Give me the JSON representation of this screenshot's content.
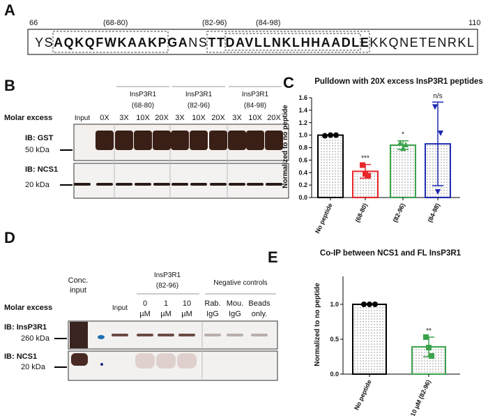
{
  "panel_a": {
    "label": "A",
    "start": 66,
    "end": 110,
    "peptides": [
      "(68-80)",
      "(82-96)",
      "(84-98)"
    ],
    "sequence": [
      {
        "text": "YS",
        "bold": false
      },
      {
        "text": "AQKQFWKAAKPGA",
        "bold": true
      },
      {
        "text": "NS",
        "bold": false
      },
      {
        "text": "TT",
        "bold": true
      },
      {
        "text": "DAVLLNKLHHAAD",
        "bold": true
      },
      {
        "text": "LE",
        "bold": true
      },
      {
        "text": "KKQNETENRKL",
        "bold": false
      }
    ]
  },
  "panel_b": {
    "label": "B",
    "molar_excess": "Molar excess",
    "input": "Input",
    "control": "0X",
    "groups": [
      {
        "name": "InsP3R1",
        "range": "(68-80)",
        "doses": [
          "3X",
          "10X",
          "20X"
        ]
      },
      {
        "name": "InsP3R1",
        "range": "(82-96)",
        "doses": [
          "3X",
          "10X",
          "20X"
        ]
      },
      {
        "name": "InsP3R1",
        "range": "(84-98)",
        "doses": [
          "3X",
          "10X",
          "20X"
        ]
      }
    ],
    "blots": [
      {
        "label": "IB: GST",
        "marker": "50 kDa"
      },
      {
        "label": "IB:  NCS1",
        "marker": "20 kDa"
      }
    ]
  },
  "panel_d": {
    "label": "D",
    "molar_excess": "Molar excess",
    "conc_input": [
      "Conc.",
      "input"
    ],
    "input": "Input",
    "group": {
      "name": "InsP3R1",
      "range": "(82-96)",
      "doses": [
        [
          "0",
          "µM"
        ],
        [
          "1",
          "µM"
        ],
        [
          "10",
          "µM"
        ]
      ]
    },
    "controls": {
      "name": "Negative controls",
      "lanes": [
        [
          "Rab.",
          "IgG"
        ],
        [
          "Mou.",
          "IgG"
        ],
        [
          "Beads",
          "only."
        ]
      ]
    },
    "blots": [
      {
        "label": "IB: InsP3R1",
        "marker": "260 kDa"
      },
      {
        "label": "IB: NCS1",
        "marker": "20 kDa"
      }
    ]
  },
  "chart_data": [
    {
      "type": "bar",
      "panel_label": "C",
      "title": "Pulldown with 20X excess InsP3R1 peptides",
      "y_label": "Normalized to no peptide",
      "categories": [
        "No peptide",
        "(68-80)",
        "(82-96)",
        "(84-98)"
      ],
      "values": [
        1.0,
        0.42,
        0.84,
        0.86
      ],
      "errors": [
        0,
        0.11,
        0.07,
        0.67
      ],
      "points": [
        [
          0.99,
          1.0,
          1.0
        ],
        [
          0.52,
          0.38,
          0.35
        ],
        [
          0.88,
          0.79,
          0.85
        ],
        [
          1.45,
          0.09,
          1.03
        ]
      ],
      "markers": [
        "circle",
        "square",
        "triangle-up",
        "triangle-down"
      ],
      "colors": [
        "#000000",
        "#e8262b",
        "#3aa24a",
        "#1f2bb0"
      ],
      "annotations": [
        null,
        "***",
        "*",
        "n/s"
      ],
      "ylim": [
        0,
        1.6
      ],
      "yticks": [
        {
          "value": 0,
          "label": "0.0"
        },
        {
          "value": 0.2,
          "label": "0.2"
        },
        {
          "value": 0.4,
          "label": "0.4"
        },
        {
          "value": 0.6,
          "label": "0.6"
        },
        {
          "value": 0.8,
          "label": "0.8"
        },
        {
          "value": 1,
          "label": "1.0"
        },
        {
          "value": 1.2,
          "label": "1.2"
        },
        {
          "value": 1.4,
          "label": "1.4"
        },
        {
          "value": 1.6,
          "label": "1.6"
        }
      ]
    },
    {
      "type": "bar",
      "panel_label": "E",
      "title": "Co-IP between NCS1 and FL InsP3R1",
      "y_label": "Normalized to no peptide",
      "categories": [
        "No peptide",
        "10 µM (82-96)"
      ],
      "values": [
        1.0,
        0.39
      ],
      "errors": [
        0,
        0.14
      ],
      "points": [
        [
          1.0,
          1.0,
          1.0
        ],
        [
          0.53,
          0.38,
          0.26
        ]
      ],
      "markers": [
        "circle",
        "square"
      ],
      "colors": [
        "#000000",
        "#3aa24a"
      ],
      "annotations": [
        null,
        "**"
      ],
      "ylim": [
        0,
        1.4
      ],
      "yticks": [
        {
          "value": 0,
          "label": "0.0"
        },
        {
          "value": 0.5,
          "label": "0.5"
        },
        {
          "value": 1,
          "label": "1.0"
        }
      ]
    }
  ]
}
